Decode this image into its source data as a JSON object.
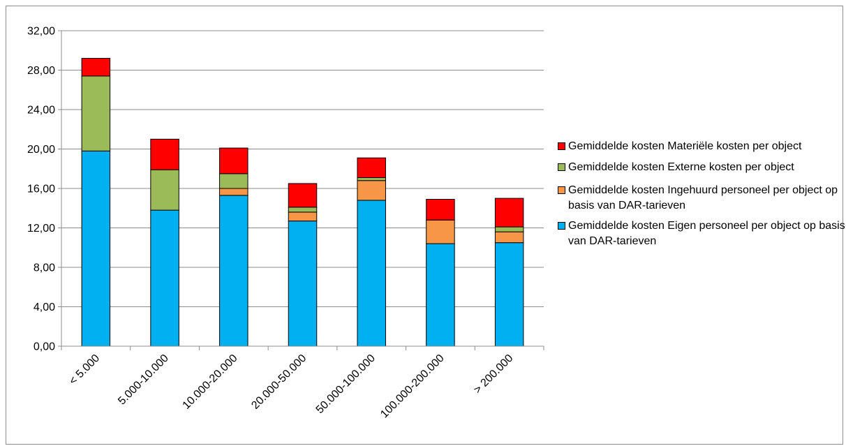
{
  "chart_data": {
    "type": "bar",
    "stacked": true,
    "title": "",
    "xlabel": "",
    "ylabel": "",
    "ylim": [
      0,
      32
    ],
    "yticks": [
      "0,00",
      "4,00",
      "8,00",
      "12,00",
      "16,00",
      "20,00",
      "24,00",
      "28,00",
      "32,00"
    ],
    "grid": true,
    "legend_position": "right",
    "categories": [
      "< 5.000",
      "5.000-10.000",
      "10.000-20.000",
      "20.000-50.000",
      "50.000-100.000",
      "100.000-200.000",
      "> 200.000"
    ],
    "series": [
      {
        "name": "Gemiddelde kosten Eigen personeel per object op basis van DAR-tarieven",
        "color": "#00b0f0",
        "values": [
          19.8,
          13.8,
          15.3,
          12.7,
          14.8,
          10.4,
          10.5
        ]
      },
      {
        "name": "Gemiddelde kosten Ingehuurd personeel per object op basis van DAR-tarieven",
        "color": "#f79646",
        "values": [
          0.0,
          0.0,
          0.7,
          0.9,
          2.0,
          2.4,
          1.1
        ]
      },
      {
        "name": "Gemiddelde kosten Externe kosten per object",
        "color": "#9bbb59",
        "values": [
          7.6,
          4.1,
          1.5,
          0.5,
          0.3,
          0.0,
          0.5
        ]
      },
      {
        "name": "Gemiddelde kosten Materiële kosten per object",
        "color": "#ff0000",
        "values": [
          1.8,
          3.1,
          2.6,
          2.4,
          2.0,
          2.1,
          2.9
        ]
      }
    ]
  }
}
